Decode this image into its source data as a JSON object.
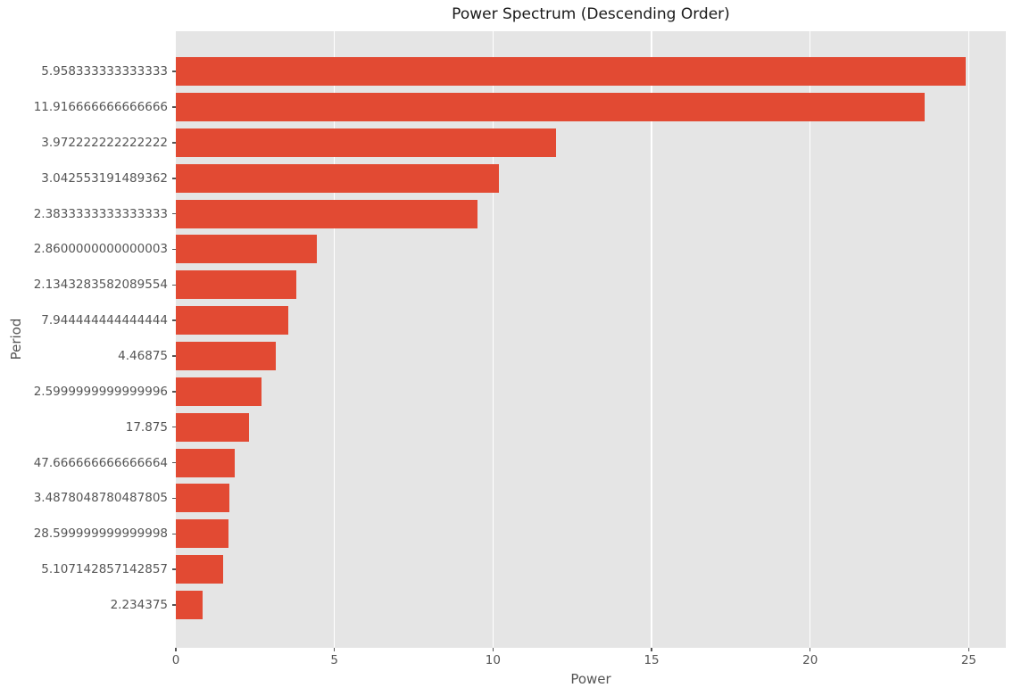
{
  "chart_data": {
    "type": "bar",
    "orientation": "horizontal",
    "title": "Power Spectrum (Descending Order)",
    "xlabel": "Power",
    "ylabel": "Period",
    "categories": [
      "5.958333333333333",
      "11.916666666666666",
      "3.972222222222222",
      "3.042553191489362",
      "2.3833333333333333",
      "2.8600000000000003",
      "2.1343283582089554",
      "7.944444444444444",
      "4.46875",
      "2.5999999999999996",
      "17.875",
      "47.666666666666664",
      "3.4878048780487805",
      "28.599999999999998",
      "5.107142857142857",
      "2.234375"
    ],
    "values": [
      24.9,
      23.6,
      12.0,
      10.2,
      9.5,
      4.45,
      3.8,
      3.55,
      3.15,
      2.7,
      2.3,
      1.85,
      1.7,
      1.65,
      1.5,
      0.85
    ],
    "xticks": [
      0,
      5,
      10,
      15,
      20,
      25
    ],
    "xlim": [
      0,
      26.17
    ],
    "grid": true,
    "legend": false,
    "colors": {
      "bar": "#E24A33",
      "plot_background": "#E5E5E5",
      "gridline": "#FFFFFF",
      "tick_label": "#555555",
      "axis_label": "#555555",
      "title": "#1A1A1A"
    }
  }
}
